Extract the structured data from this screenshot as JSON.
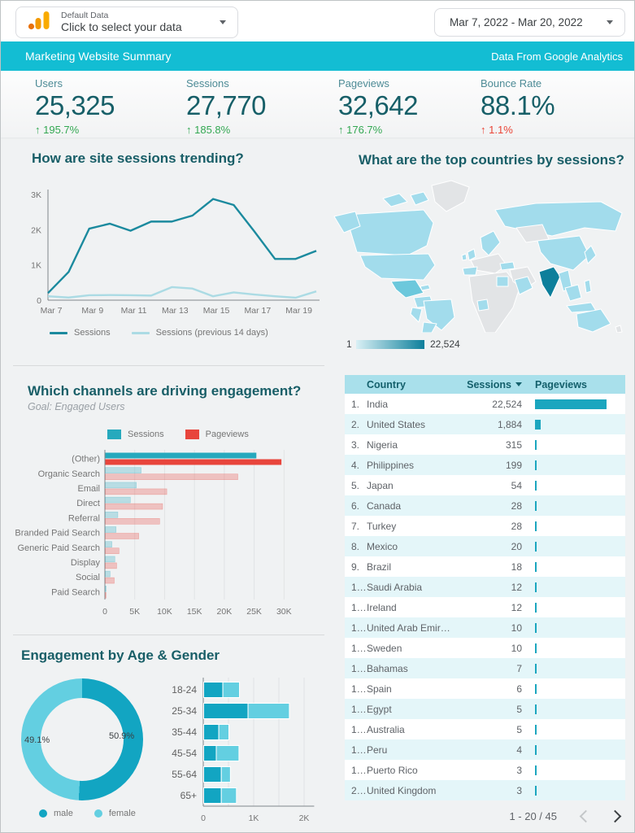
{
  "topbar": {
    "data_selector": {
      "title": "Default Data",
      "subtitle": "Click to select your data"
    },
    "date_selector": {
      "value": "Mar 7, 2022 - Mar 20, 2022"
    }
  },
  "titlebar": {
    "title": "Marketing Website Summary",
    "source": "Data From Google Analytics"
  },
  "scorecards": [
    {
      "label": "Users",
      "value": "25,325",
      "arrow": "↑",
      "delta": "195.7%",
      "delta_color": "#34a853"
    },
    {
      "label": "Sessions",
      "value": "27,770",
      "arrow": "↑",
      "delta": "185.8%",
      "delta_color": "#34a853"
    },
    {
      "label": "Pageviews",
      "value": "32,642",
      "arrow": "↑",
      "delta": "176.7%",
      "delta_color": "#34a853"
    },
    {
      "label": "Bounce Rate",
      "value": "88.1%",
      "arrow": "↑",
      "delta": "1.1%",
      "delta_color": "#ea4335"
    }
  ],
  "trend_chart": {
    "type": "line",
    "title": "How are site sessions trending?",
    "x": [
      "Mar 7",
      "Mar 8",
      "Mar 9",
      "Mar 10",
      "Mar 11",
      "Mar 12",
      "Mar 13",
      "Mar 14",
      "Mar 15",
      "Mar 16",
      "Mar 17",
      "Mar 18",
      "Mar 19",
      "Mar 20"
    ],
    "x_tick_labels": [
      "Mar 7",
      "Mar 9",
      "Mar 11",
      "Mar 13",
      "Mar 15",
      "Mar 17",
      "Mar 19"
    ],
    "y_ticks": [
      "0",
      "1K",
      "2K",
      "3K"
    ],
    "ylim": [
      0,
      3000
    ],
    "series": [
      {
        "name": "Sessions",
        "color": "#1b8a9e",
        "values": [
          200,
          800,
          2030,
          2170,
          1970,
          2230,
          2230,
          2400,
          2870,
          2700,
          1950,
          1170,
          1170,
          1400
        ]
      },
      {
        "name": "Sessions (previous 14 days)",
        "color": "#abdbe4",
        "values": [
          110,
          75,
          140,
          145,
          140,
          130,
          370,
          330,
          110,
          220,
          160,
          110,
          70,
          250
        ]
      }
    ]
  },
  "channels_chart": {
    "type": "bar",
    "title": "Which channels are driving engagement?",
    "subtitle": "Goal: Engaged Users",
    "categories": [
      "(Other)",
      "Organic Search",
      "Email",
      "Direct",
      "Referral",
      "Branded Paid Search",
      "Generic Paid Search",
      "Display",
      "Social",
      "Paid Search"
    ],
    "series": [
      {
        "name": "Sessions",
        "color": "#26a9bd",
        "values": [
          25300,
          6000,
          5200,
          4200,
          2100,
          1800,
          1100,
          1600,
          800,
          40
        ]
      },
      {
        "name": "Pageviews",
        "color": "#e8453c",
        "values": [
          29500,
          22200,
          10300,
          9600,
          9100,
          5600,
          2300,
          1900,
          1500,
          60
        ]
      }
    ],
    "x_ticks": [
      "0",
      "5K",
      "10K",
      "15K",
      "20K",
      "25K",
      "30K"
    ],
    "xlim": [
      0,
      32000
    ],
    "highlighted_category": "(Other)"
  },
  "age_gender": {
    "title": "Engagement by Age & Gender",
    "donut": {
      "type": "pie",
      "slices": [
        {
          "name": "male",
          "pct": 50.9,
          "label": "50.9%",
          "color": "#12a5c2"
        },
        {
          "name": "female",
          "pct": 49.1,
          "label": "49.1%",
          "color": "#63cfe1"
        }
      ]
    },
    "age_chart": {
      "type": "stacked-bar",
      "categories": [
        "18-24",
        "25-34",
        "35-44",
        "45-54",
        "55-64",
        "65+"
      ],
      "series": [
        {
          "name": "male",
          "color": "#12a5c2",
          "values": [
            380,
            880,
            300,
            250,
            350,
            350
          ]
        },
        {
          "name": "female",
          "color": "#63cfe1",
          "values": [
            330,
            820,
            200,
            450,
            180,
            300
          ]
        }
      ],
      "x_ticks": [
        "0",
        "1K",
        "2K"
      ],
      "xlim": [
        0,
        2200
      ]
    }
  },
  "map": {
    "title": "What are the top countries by sessions?",
    "scale_min": "1",
    "scale_max": "22,524",
    "palette": {
      "none": "#e2e4e6",
      "low": "#a2dcec",
      "mid": "#6cc8dc",
      "high": "#0d7f9b"
    }
  },
  "country_table": {
    "columns": [
      "Country",
      "Sessions",
      "Pageviews"
    ],
    "bar_color": "#1ba6bf",
    "max_sessions": 22524,
    "rows": [
      {
        "rank": "1.",
        "country": "India",
        "sessions": "22,524",
        "sessions_value": 22524
      },
      {
        "rank": "2.",
        "country": "United States",
        "sessions": "1,884",
        "sessions_value": 1884
      },
      {
        "rank": "3.",
        "country": "Nigeria",
        "sessions": "315",
        "sessions_value": 315
      },
      {
        "rank": "4.",
        "country": "Philippines",
        "sessions": "199",
        "sessions_value": 199
      },
      {
        "rank": "5.",
        "country": "Japan",
        "sessions": "54",
        "sessions_value": 54
      },
      {
        "rank": "6.",
        "country": "Canada",
        "sessions": "28",
        "sessions_value": 28
      },
      {
        "rank": "7.",
        "country": "Turkey",
        "sessions": "28",
        "sessions_value": 28
      },
      {
        "rank": "8.",
        "country": "Mexico",
        "sessions": "20",
        "sessions_value": 20
      },
      {
        "rank": "9.",
        "country": "Brazil",
        "sessions": "18",
        "sessions_value": 18
      },
      {
        "rank": "1…",
        "country": "Saudi Arabia",
        "sessions": "12",
        "sessions_value": 12
      },
      {
        "rank": "1…",
        "country": "Ireland",
        "sessions": "12",
        "sessions_value": 12
      },
      {
        "rank": "1…",
        "country": "United Arab Emir…",
        "sessions": "10",
        "sessions_value": 10
      },
      {
        "rank": "1…",
        "country": "Sweden",
        "sessions": "10",
        "sessions_value": 10
      },
      {
        "rank": "1…",
        "country": "Bahamas",
        "sessions": "7",
        "sessions_value": 7
      },
      {
        "rank": "1…",
        "country": "Spain",
        "sessions": "6",
        "sessions_value": 6
      },
      {
        "rank": "1…",
        "country": "Egypt",
        "sessions": "5",
        "sessions_value": 5
      },
      {
        "rank": "1…",
        "country": "Australia",
        "sessions": "5",
        "sessions_value": 5
      },
      {
        "rank": "1…",
        "country": "Peru",
        "sessions": "4",
        "sessions_value": 4
      },
      {
        "rank": "1…",
        "country": "Puerto Rico",
        "sessions": "3",
        "sessions_value": 3
      },
      {
        "rank": "2…",
        "country": "United Kingdom",
        "sessions": "3",
        "sessions_value": 3
      }
    ],
    "pagination": "1 - 20 / 45"
  }
}
